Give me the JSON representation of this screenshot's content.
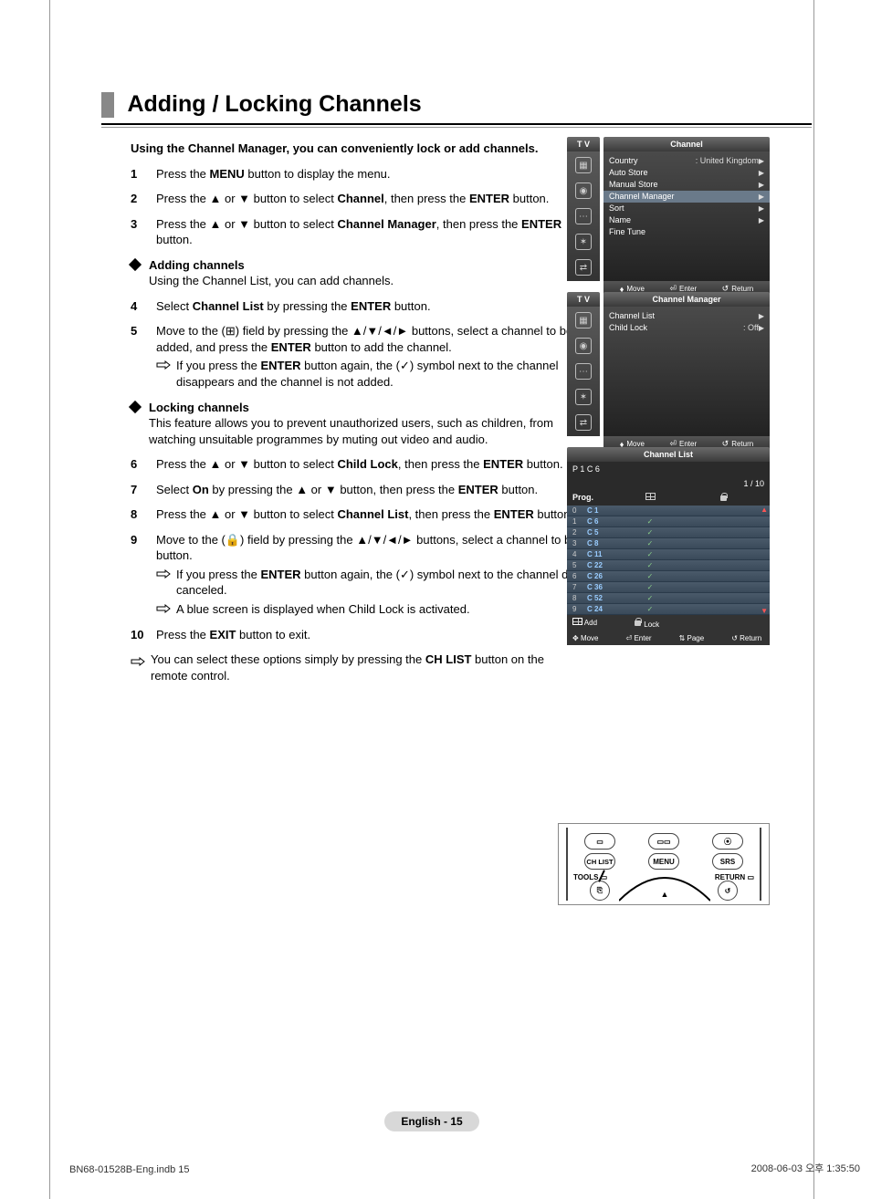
{
  "title": "Adding / Locking Channels",
  "intro": "Using the Channel Manager, you can conveniently lock or add channels.",
  "steps": {
    "s1": "Press the <b>MENU</b> button to display the menu.",
    "s2": "Press the ▲ or ▼ button to select <b>Channel</b>, then press the <b>ENTER</b> button.",
    "s3": "Press the ▲ or ▼ button to select <b>Channel Manager</b>, then press the <b>ENTER</b> button.",
    "adding_head": "Adding channels",
    "adding_sub": "Using the Channel List, you can add channels.",
    "s4": "Select <b>Channel List</b> by pressing the <b>ENTER</b> button.",
    "s5": "Move to the (⊞) field by pressing the ▲/▼/◄/► buttons, select a channel to be added, and press the <b>ENTER</b> button to add the channel.",
    "s5_note": "If you press the <b>ENTER</b> button again, the (✓) symbol next to the channel disappears and the channel is not added.",
    "locking_head": "Locking channels",
    "locking_sub": "This feature allows you to prevent unauthorized users, such as children, from watching unsuitable programmes by muting out video and audio.",
    "s6": "Press the ▲ or ▼ button to select <b>Child Lock</b>, then press the <b>ENTER</b> button.",
    "s7": "Select <b>On</b> by pressing the ▲ or ▼ button, then press the <b>ENTER</b> button.",
    "s8": "Press the ▲ or ▼ button to select <b>Channel List</b>, then press the <b>ENTER</b> button.",
    "s9": "Move to the (🔒) field by pressing the ▲/▼/◄/► buttons, select a channel to be locked, and press the <b>ENTER</b> button.",
    "s9_note1": "If you press the <b>ENTER</b> button again, the (✓) symbol next to the channel disappears and the channel lock is canceled.",
    "s9_note2": "A blue screen is displayed when Child Lock is activated.",
    "s10": "Press the <b>EXIT</b> button to exit.",
    "final_note": "You can select these options simply by pressing the <b>CH LIST</b> button on the remote control."
  },
  "osd1": {
    "tv": "T V",
    "title": "Channel",
    "rows": [
      {
        "l": "Country",
        "r": ": United Kingdom",
        "arrow": "▶"
      },
      {
        "l": "Auto Store",
        "r": "",
        "arrow": "▶"
      },
      {
        "l": "Manual Store",
        "r": "",
        "arrow": "▶"
      },
      {
        "l": "Channel Manager",
        "r": "",
        "arrow": "▶",
        "sel": true
      },
      {
        "l": "Sort",
        "r": "",
        "arrow": "▶"
      },
      {
        "l": "Name",
        "r": "",
        "arrow": "▶"
      },
      {
        "l": "Fine Tune",
        "r": "",
        "arrow": ""
      }
    ],
    "foot": {
      "move": "Move",
      "enter": "Enter",
      "return": "Return"
    }
  },
  "osd2": {
    "tv": "T V",
    "title": "Channel Manager",
    "rows": [
      {
        "l": "Channel List",
        "r": "",
        "arrow": "▶"
      },
      {
        "l": "Child Lock",
        "r": ": Off",
        "arrow": "▶"
      }
    ],
    "foot": {
      "move": "Move",
      "enter": "Enter",
      "return": "Return"
    }
  },
  "cl": {
    "title": "Channel List",
    "pc": "P  1    C 6",
    "page": "1 / 10",
    "hdr_prog": "Prog.",
    "rows": [
      {
        "n": "0",
        "c": "C 1",
        "chk": ""
      },
      {
        "n": "1",
        "c": "C 6",
        "chk": "✓"
      },
      {
        "n": "2",
        "c": "C 5",
        "chk": "✓"
      },
      {
        "n": "3",
        "c": "C 8",
        "chk": "✓"
      },
      {
        "n": "4",
        "c": "C 11",
        "chk": "✓"
      },
      {
        "n": "5",
        "c": "C 22",
        "chk": "✓"
      },
      {
        "n": "6",
        "c": "C 26",
        "chk": "✓"
      },
      {
        "n": "7",
        "c": "C 36",
        "chk": "✓"
      },
      {
        "n": "8",
        "c": "C 52",
        "chk": "✓"
      },
      {
        "n": "9",
        "c": "C 24",
        "chk": "✓"
      }
    ],
    "foot1": {
      "add": "Add",
      "lock": "Lock"
    },
    "foot2": {
      "move": "Move",
      "enter": "Enter",
      "page": "Page",
      "return": "Return"
    }
  },
  "remote": {
    "chlist": "CH LIST",
    "menu": "MENU",
    "srs": "SRS",
    "tools": "TOOLS",
    "return": "RETURN"
  },
  "page_footer": "English - 15",
  "docfoot_l": "BN68-01528B-Eng.indb   15",
  "docfoot_r": "2008-06-03   오후 1:35:50"
}
